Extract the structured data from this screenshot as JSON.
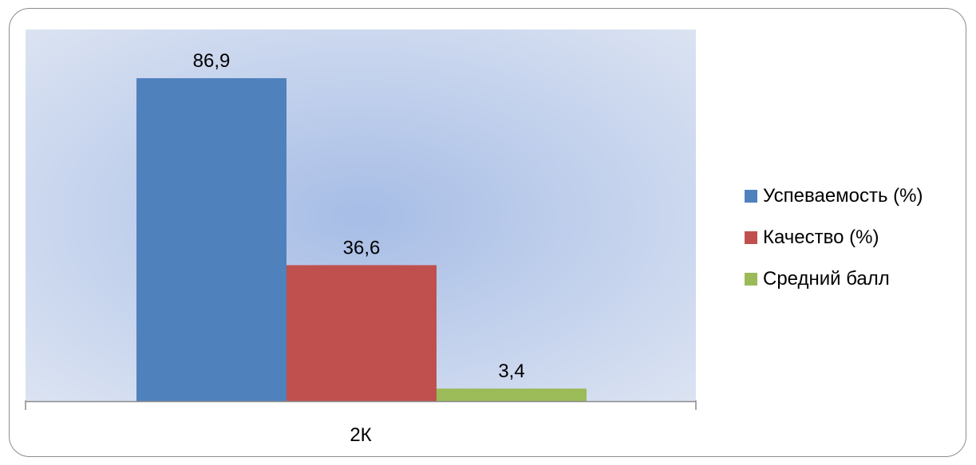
{
  "chart_data": {
    "type": "bar",
    "categories": [
      "2К"
    ],
    "series": [
      {
        "name": "Успеваемость (%)",
        "values": [
          86.9
        ],
        "label": "86,9",
        "color": "#4F81BD"
      },
      {
        "name": "Качество (%)",
        "values": [
          36.6
        ],
        "label": "36,6",
        "color": "#C0504D"
      },
      {
        "name": "Средний балл",
        "values": [
          3.4
        ],
        "label": "3,4",
        "color": "#9BBB59"
      }
    ],
    "ylim": [
      0,
      100
    ],
    "grid": false,
    "legend": "right",
    "plot_background": "radial-gradient blue"
  }
}
